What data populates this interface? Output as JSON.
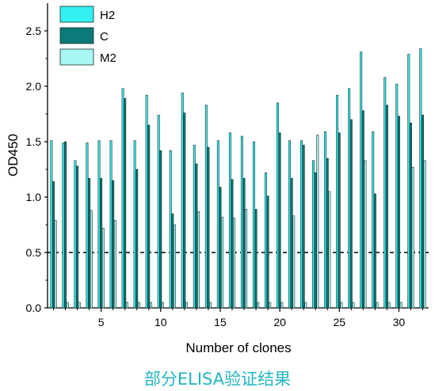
{
  "caption": "部分ELISA验证结果",
  "colors": {
    "H2": "#33f0f0",
    "C": "#0b7a78",
    "M2": "#a8f7f3",
    "outline": "#1a2e2e",
    "dash": "#000000"
  },
  "chart_data": {
    "type": "bar",
    "xlabel": "Number of clones",
    "ylabel": "OD450",
    "ylim": [
      0,
      2.75
    ],
    "xlim": [
      0.5,
      32.5
    ],
    "yticks": [
      "0.0",
      "0.5",
      "1.0",
      "1.5",
      "2.0",
      "2.5"
    ],
    "yticks_values": [
      0,
      0.5,
      1.0,
      1.5,
      2.0,
      2.5
    ],
    "xticks": [
      "5",
      "10",
      "15",
      "20",
      "25",
      "30"
    ],
    "xticks_values": [
      5,
      10,
      15,
      20,
      25,
      30
    ],
    "threshold": 0.5,
    "legend_position": "top-left",
    "categories": [
      1,
      2,
      3,
      4,
      5,
      6,
      7,
      8,
      9,
      10,
      11,
      12,
      13,
      14,
      15,
      16,
      17,
      18,
      19,
      20,
      21,
      22,
      23,
      24,
      25,
      26,
      27,
      28,
      29,
      30,
      31,
      32
    ],
    "series": [
      {
        "name": "H2",
        "values": [
          1.51,
          1.49,
          1.33,
          1.49,
          1.51,
          1.51,
          1.98,
          1.51,
          1.92,
          1.74,
          1.42,
          1.94,
          1.47,
          1.83,
          1.51,
          1.58,
          1.55,
          1.5,
          1.22,
          1.85,
          1.51,
          1.51,
          1.33,
          1.59,
          1.92,
          1.98,
          2.31,
          1.59,
          2.08,
          2.02,
          2.29,
          2.34
        ]
      },
      {
        "name": "C",
        "values": [
          1.14,
          1.5,
          1.28,
          1.17,
          1.17,
          1.15,
          1.89,
          1.25,
          1.65,
          1.42,
          0.85,
          1.76,
          1.3,
          1.45,
          1.09,
          1.16,
          1.17,
          0.89,
          1.01,
          1.58,
          1.17,
          1.47,
          1.22,
          1.35,
          1.58,
          1.7,
          1.78,
          1.03,
          1.83,
          1.73,
          1.67,
          1.74
        ]
      },
      {
        "name": "M2",
        "values": [
          0.79,
          0.05,
          0.05,
          0.88,
          0.72,
          0.79,
          0.05,
          0.05,
          0.05,
          0.05,
          0.75,
          0.05,
          0.87,
          0.05,
          0.82,
          0.81,
          0.89,
          0.05,
          0.05,
          0.05,
          0.83,
          0.05,
          1.56,
          1.05,
          0.05,
          0.05,
          1.33,
          0.05,
          0.05,
          0.05,
          1.27,
          1.33
        ]
      }
    ]
  }
}
